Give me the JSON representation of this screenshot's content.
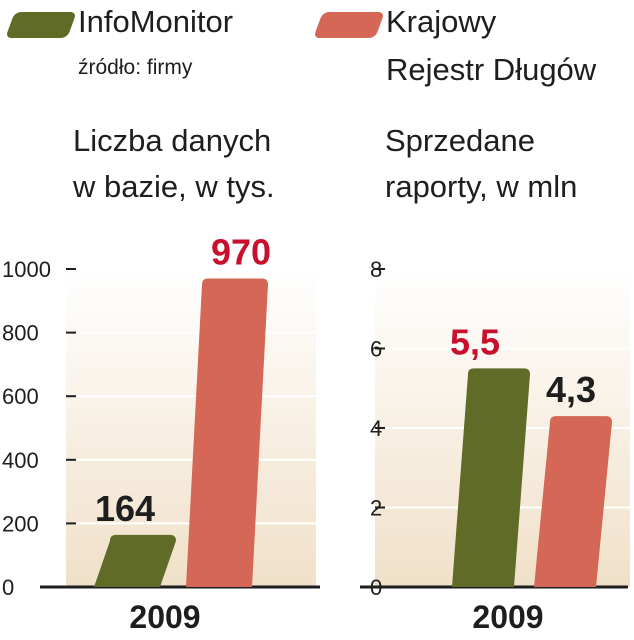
{
  "legend": {
    "series_a": {
      "label": "InfoMonitor",
      "source": "źródło: firmy",
      "color": "#5f6b26"
    },
    "series_b": {
      "label_line1": "Krajowy",
      "label_line2": "Rejestr Długów",
      "color": "#d46755"
    }
  },
  "colors": {
    "highlight": "#c8102e",
    "text": "#1e1e1e",
    "panel": "#f3e6d2"
  },
  "chart_data": [
    {
      "type": "bar",
      "title_line1": "Liczba danych",
      "title_line2": "w bazie, w tys.",
      "categories": [
        "2009"
      ],
      "series": [
        {
          "name": "InfoMonitor",
          "values": [
            164
          ]
        },
        {
          "name": "Krajowy Rejestr Długów",
          "values": [
            970
          ]
        }
      ],
      "value_labels": [
        "164",
        "970"
      ],
      "yticks": [
        "0",
        "200",
        "400",
        "600",
        "800",
        "1000"
      ],
      "ylim": [
        0,
        1000
      ]
    },
    {
      "type": "bar",
      "title_line1": "Sprzedane",
      "title_line2": "raporty, w mln",
      "categories": [
        "2009"
      ],
      "series": [
        {
          "name": "InfoMonitor",
          "values": [
            5.5
          ]
        },
        {
          "name": "Krajowy Rejestr Długów",
          "values": [
            4.3
          ]
        }
      ],
      "value_labels": [
        "5,5",
        "4,3"
      ],
      "yticks": [
        "0",
        "2",
        "4",
        "6",
        "8"
      ],
      "ylim": [
        0,
        8
      ]
    }
  ]
}
